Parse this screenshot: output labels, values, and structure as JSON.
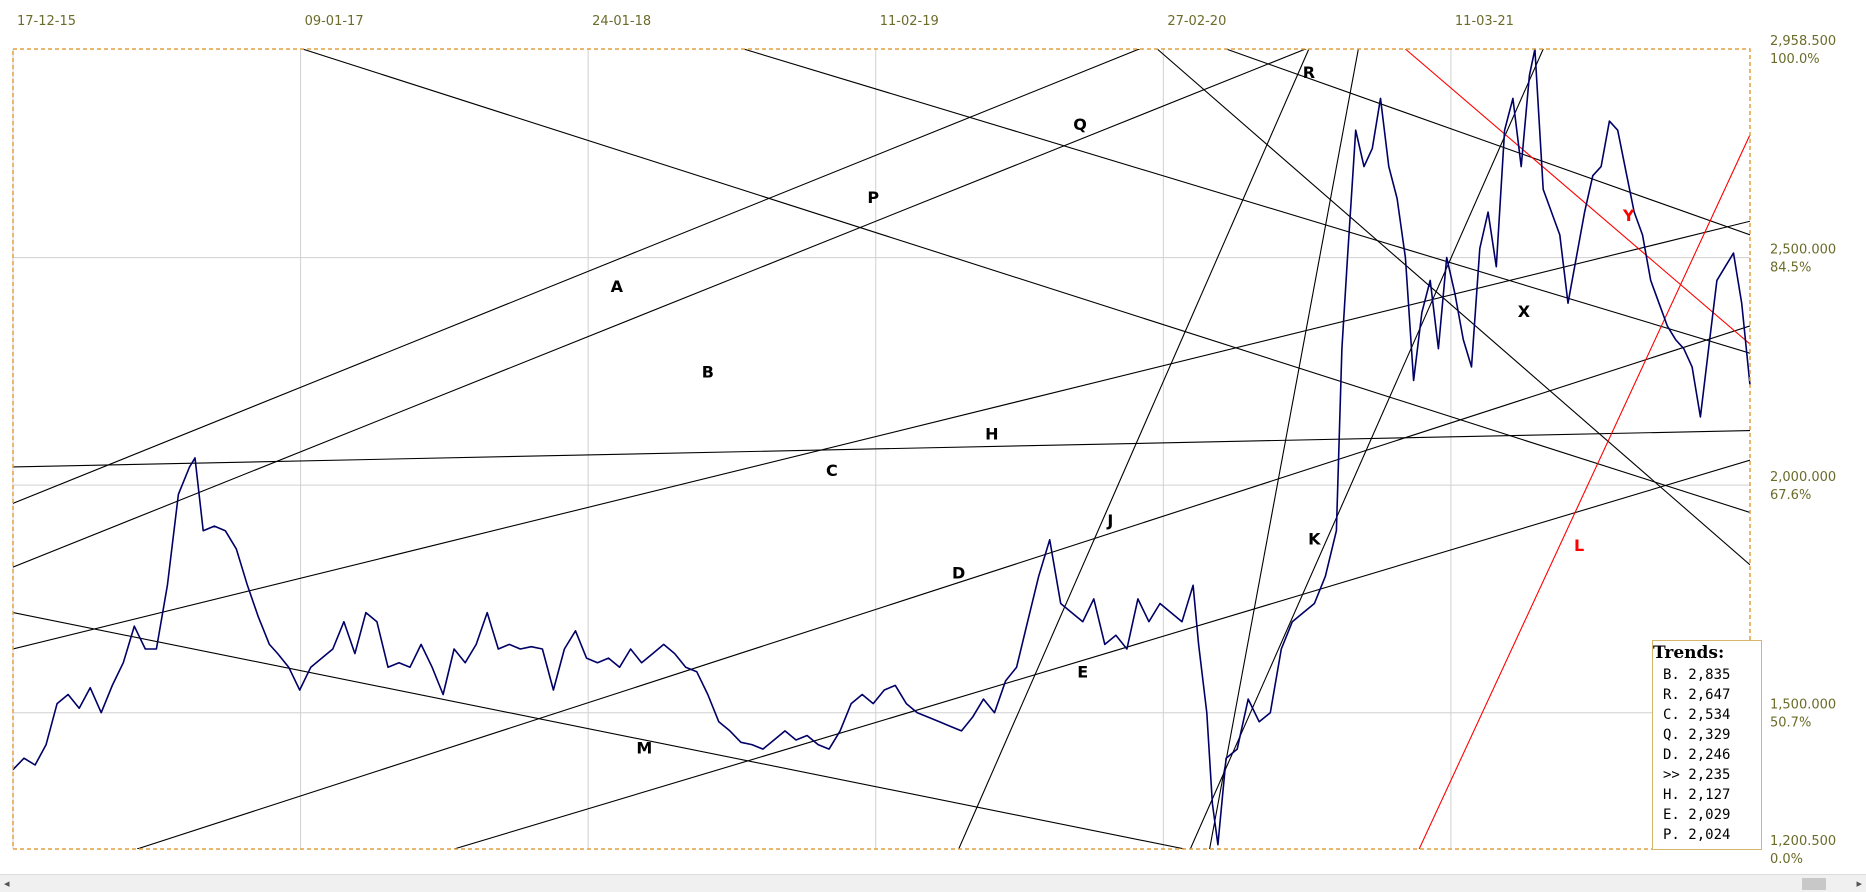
{
  "chart_data": {
    "type": "line",
    "x_ticks": [
      "17-12-15",
      "09-01-17",
      "24-01-18",
      "11-02-19",
      "27-02-20",
      "11-03-21"
    ],
    "y_ticks": [
      {
        "value": 2958.5,
        "label": "2,958.500",
        "pct": "100.0%"
      },
      {
        "value": 2500,
        "label": "2,500.000",
        "pct": "84.5%"
      },
      {
        "value": 2000,
        "label": "2,000.000",
        "pct": "67.6%"
      },
      {
        "value": 1500,
        "label": "1,500.000",
        "pct": "50.7%"
      },
      {
        "value": 1200.5,
        "label": "1,200.500",
        "pct": "0.0%"
      }
    ],
    "ylim": [
      1200.5,
      2958.5
    ],
    "xlim": [
      0,
      63
    ],
    "series": [
      {
        "color": "#000066",
        "points": [
          [
            0,
            1375
          ],
          [
            0.4,
            1400
          ],
          [
            0.8,
            1385
          ],
          [
            1.2,
            1430
          ],
          [
            1.6,
            1520
          ],
          [
            2.0,
            1540
          ],
          [
            2.4,
            1510
          ],
          [
            2.8,
            1555
          ],
          [
            3.2,
            1500
          ],
          [
            3.6,
            1560
          ],
          [
            4.0,
            1610
          ],
          [
            4.4,
            1690
          ],
          [
            4.8,
            1640
          ],
          [
            5.2,
            1640
          ],
          [
            5.6,
            1780
          ],
          [
            6.0,
            1980
          ],
          [
            6.4,
            2040
          ],
          [
            6.6,
            2060
          ],
          [
            6.9,
            1900
          ],
          [
            7.3,
            1910
          ],
          [
            7.7,
            1900
          ],
          [
            8.1,
            1860
          ],
          [
            8.5,
            1780
          ],
          [
            8.9,
            1710
          ],
          [
            9.3,
            1650
          ],
          [
            9.6,
            1630
          ],
          [
            10.0,
            1600
          ],
          [
            10.4,
            1550
          ],
          [
            10.8,
            1600
          ],
          [
            11.2,
            1620
          ],
          [
            11.6,
            1640
          ],
          [
            12.0,
            1700
          ],
          [
            12.4,
            1630
          ],
          [
            12.8,
            1720
          ],
          [
            13.2,
            1700
          ],
          [
            13.6,
            1600
          ],
          [
            14.0,
            1610
          ],
          [
            14.4,
            1600
          ],
          [
            14.8,
            1650
          ],
          [
            15.2,
            1600
          ],
          [
            15.6,
            1540
          ],
          [
            16.0,
            1640
          ],
          [
            16.4,
            1610
          ],
          [
            16.8,
            1650
          ],
          [
            17.2,
            1720
          ],
          [
            17.6,
            1640
          ],
          [
            18.0,
            1650
          ],
          [
            18.4,
            1640
          ],
          [
            18.8,
            1645
          ],
          [
            19.2,
            1640
          ],
          [
            19.6,
            1550
          ],
          [
            20.0,
            1640
          ],
          [
            20.4,
            1680
          ],
          [
            20.8,
            1620
          ],
          [
            21.2,
            1610
          ],
          [
            21.6,
            1620
          ],
          [
            22.0,
            1600
          ],
          [
            22.4,
            1640
          ],
          [
            22.8,
            1610
          ],
          [
            23.2,
            1630
          ],
          [
            23.6,
            1650
          ],
          [
            24.0,
            1630
          ],
          [
            24.4,
            1600
          ],
          [
            24.8,
            1590
          ],
          [
            25.2,
            1540
          ],
          [
            25.6,
            1480
          ],
          [
            26.0,
            1460
          ],
          [
            26.4,
            1435
          ],
          [
            26.8,
            1430
          ],
          [
            27.2,
            1420
          ],
          [
            27.6,
            1440
          ],
          [
            28.0,
            1460
          ],
          [
            28.4,
            1440
          ],
          [
            28.8,
            1450
          ],
          [
            29.2,
            1430
          ],
          [
            29.6,
            1420
          ],
          [
            30.0,
            1460
          ],
          [
            30.4,
            1520
          ],
          [
            30.8,
            1540
          ],
          [
            31.2,
            1520
          ],
          [
            31.6,
            1550
          ],
          [
            32.0,
            1560
          ],
          [
            32.4,
            1520
          ],
          [
            32.8,
            1500
          ],
          [
            33.2,
            1490
          ],
          [
            33.6,
            1480
          ],
          [
            34.0,
            1470
          ],
          [
            34.4,
            1460
          ],
          [
            34.8,
            1490
          ],
          [
            35.2,
            1530
          ],
          [
            35.6,
            1500
          ],
          [
            36.0,
            1570
          ],
          [
            36.4,
            1600
          ],
          [
            36.8,
            1700
          ],
          [
            37.2,
            1800
          ],
          [
            37.6,
            1880
          ],
          [
            38.0,
            1740
          ],
          [
            38.4,
            1720
          ],
          [
            38.8,
            1700
          ],
          [
            39.2,
            1750
          ],
          [
            39.6,
            1650
          ],
          [
            40.0,
            1670
          ],
          [
            40.4,
            1640
          ],
          [
            40.8,
            1750
          ],
          [
            41.2,
            1700
          ],
          [
            41.6,
            1740
          ],
          [
            42.0,
            1720
          ],
          [
            42.4,
            1700
          ],
          [
            42.8,
            1780
          ],
          [
            43.0,
            1650
          ],
          [
            43.3,
            1500
          ],
          [
            43.5,
            1300
          ],
          [
            43.7,
            1210
          ],
          [
            44.0,
            1400
          ],
          [
            44.4,
            1420
          ],
          [
            44.8,
            1530
          ],
          [
            45.2,
            1480
          ],
          [
            45.6,
            1500
          ],
          [
            46.0,
            1640
          ],
          [
            46.4,
            1700
          ],
          [
            46.8,
            1720
          ],
          [
            47.2,
            1740
          ],
          [
            47.6,
            1800
          ],
          [
            48.0,
            1900
          ],
          [
            48.2,
            2300
          ],
          [
            48.4,
            2500
          ],
          [
            48.7,
            2780
          ],
          [
            49.0,
            2700
          ],
          [
            49.3,
            2740
          ],
          [
            49.6,
            2850
          ],
          [
            49.9,
            2700
          ],
          [
            50.2,
            2630
          ],
          [
            50.5,
            2500
          ],
          [
            50.8,
            2230
          ],
          [
            51.1,
            2380
          ],
          [
            51.4,
            2450
          ],
          [
            51.7,
            2300
          ],
          [
            52.0,
            2500
          ],
          [
            52.3,
            2420
          ],
          [
            52.6,
            2320
          ],
          [
            52.9,
            2260
          ],
          [
            53.2,
            2520
          ],
          [
            53.5,
            2600
          ],
          [
            53.8,
            2480
          ],
          [
            54.1,
            2780
          ],
          [
            54.4,
            2850
          ],
          [
            54.7,
            2700
          ],
          [
            55.0,
            2900
          ],
          [
            55.2,
            2958
          ],
          [
            55.5,
            2650
          ],
          [
            55.8,
            2600
          ],
          [
            56.1,
            2550
          ],
          [
            56.4,
            2400
          ],
          [
            56.7,
            2500
          ],
          [
            57.0,
            2600
          ],
          [
            57.3,
            2680
          ],
          [
            57.6,
            2700
          ],
          [
            57.9,
            2800
          ],
          [
            58.2,
            2780
          ],
          [
            58.5,
            2690
          ],
          [
            58.8,
            2600
          ],
          [
            59.1,
            2550
          ],
          [
            59.4,
            2450
          ],
          [
            59.7,
            2400
          ],
          [
            60.0,
            2350
          ],
          [
            60.3,
            2320
          ],
          [
            60.6,
            2300
          ],
          [
            60.9,
            2260
          ],
          [
            61.2,
            2150
          ],
          [
            61.5,
            2300
          ],
          [
            61.8,
            2450
          ],
          [
            62.1,
            2480
          ],
          [
            62.4,
            2510
          ],
          [
            62.7,
            2400
          ],
          [
            63.0,
            2220
          ]
        ]
      }
    ],
    "trend_lines": [
      {
        "label": "A",
        "color": "#000000",
        "x0": 0,
        "y0": 1960,
        "x1": 63,
        "y1": 3500,
        "lx": 21.9,
        "ly": 2425
      },
      {
        "label": "B",
        "color": "#000000",
        "x0": 0,
        "y0": 1820,
        "x1": 63,
        "y1": 3350,
        "lx": 25.2,
        "ly": 2237
      },
      {
        "label": "C",
        "color": "#000000",
        "x0": 0,
        "y0": 1640,
        "x1": 63,
        "y1": 2580,
        "lx": 29.7,
        "ly": 2020
      },
      {
        "label": "D",
        "color": "#000000",
        "x0": 4.5,
        "y0": 1200.5,
        "x1": 63,
        "y1": 2350,
        "lx": 34.3,
        "ly": 1795
      },
      {
        "label": "E",
        "color": "#000000",
        "x0": 16.0,
        "y0": 1200.5,
        "x1": 63,
        "y1": 2055,
        "lx": 38.8,
        "ly": 1577
      },
      {
        "label": "H",
        "color": "#000000",
        "x0": 0,
        "y0": 2040,
        "x1": 63,
        "y1": 2120,
        "lx": 35.5,
        "ly": 2100
      },
      {
        "label": "M",
        "color": "#000000",
        "x0": 0,
        "y0": 1720,
        "x1": 42.5,
        "y1": 1200.5,
        "lx": 22.9,
        "ly": 1410
      },
      {
        "label": "P",
        "color": "#000000",
        "x0": 10.5,
        "y0": 2958.5,
        "x1": 63,
        "y1": 1940,
        "lx": 31.2,
        "ly": 2620
      },
      {
        "label": "Q",
        "color": "#000000",
        "x0": 26.5,
        "y0": 2958.5,
        "x1": 63,
        "y1": 2290,
        "lx": 38.7,
        "ly": 2780
      },
      {
        "label": "J",
        "color": "#000000",
        "x0": 34.3,
        "y0": 1200.5,
        "x1": 47.0,
        "y1": 2958.5,
        "lx": 39.8,
        "ly": 1910
      },
      {
        "label": "K",
        "color": "#000000",
        "x0": 42.7,
        "y0": 1200.5,
        "x1": 55.5,
        "y1": 2958.5,
        "lx": 47.2,
        "ly": 1870
      },
      {
        "label": "R",
        "color": "#000000",
        "x0": 43.4,
        "y0": 1200.5,
        "x1": 48.8,
        "y1": 2960,
        "lx": 47.0,
        "ly": 2895
      },
      {
        "label": "X",
        "color": "#000000",
        "x0": 41.5,
        "y0": 2958.5,
        "x1": 63,
        "y1": 1825,
        "lx": 54.8,
        "ly": 2370
      },
      {
        "label": "",
        "color": "#000000",
        "x0": 44.0,
        "y0": 2958.5,
        "x1": 63,
        "y1": 2550,
        "lx": 0,
        "ly": 0
      },
      {
        "label": "Y",
        "color": "#ff0000",
        "x0": 50.5,
        "y0": 2958.5,
        "x1": 63,
        "y1": 2310,
        "lx": 58.6,
        "ly": 2580
      },
      {
        "label": "L",
        "color": "#ff0000",
        "x0": 51.0,
        "y0": 1200.5,
        "x1": 63,
        "y1": 2770,
        "lx": 56.8,
        "ly": 1855
      }
    ],
    "legend_title": "Trends:",
    "legend_entries": [
      "B. 2,835",
      "R. 2,647",
      "C. 2,534",
      "Q. 2,329",
      "D. 2,246",
      ">> 2,235",
      "H. 2,127",
      "E. 2,029",
      "P. 2,024"
    ],
    "grid": true,
    "legend_position": "bottom-right"
  },
  "scrollbar": {
    "left_arrow": "◂",
    "right_arrow": "▸"
  },
  "colors": {
    "price": "#000066",
    "frame": "#e0a040",
    "grid": "#d0d0d0",
    "axis_text": "#6b6b2a",
    "red": "#ff0000"
  }
}
